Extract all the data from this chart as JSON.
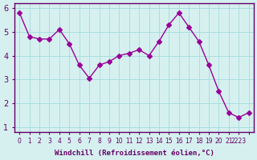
{
  "x": [
    0,
    1,
    2,
    3,
    4,
    5,
    6,
    7,
    8,
    9,
    10,
    11,
    12,
    13,
    14,
    15,
    16,
    17,
    18,
    19,
    20,
    21,
    22,
    23
  ],
  "y": [
    5.8,
    4.8,
    4.7,
    4.7,
    5.1,
    4.5,
    3.6,
    3.05,
    3.6,
    3.75,
    4.0,
    4.1,
    4.25,
    4.0,
    4.6,
    5.3,
    5.8,
    5.2,
    4.6,
    3.6,
    2.5,
    1.6,
    1.4,
    1.6
  ],
  "line_color": "#990099",
  "marker": "D",
  "marker_size": 3,
  "xlabel": "Windchill (Refroidissement éolien,°C)",
  "xlabel_color": "#660066",
  "bg_color": "#d6f0f0",
  "grid_color": "#aadddd",
  "tick_label_color": "#660066",
  "spine_color": "#660066",
  "ylim": [
    0.8,
    6.2
  ],
  "xlim": [
    -0.5,
    23.5
  ],
  "yticks": [
    1,
    2,
    3,
    4,
    5,
    6
  ],
  "xtick_positions": [
    0,
    1,
    2,
    3,
    4,
    5,
    6,
    7,
    8,
    9,
    10,
    11,
    12,
    13,
    14,
    15,
    16,
    17,
    18,
    19,
    20,
    21,
    22,
    23
  ],
  "xtick_labels": [
    "0",
    "1",
    "2",
    "3",
    "4",
    "5",
    "6",
    "7",
    "8",
    "9",
    "10",
    "11",
    "12",
    "13",
    "14",
    "15",
    "16",
    "17",
    "18",
    "19",
    "20",
    "21",
    "2223",
    ""
  ]
}
